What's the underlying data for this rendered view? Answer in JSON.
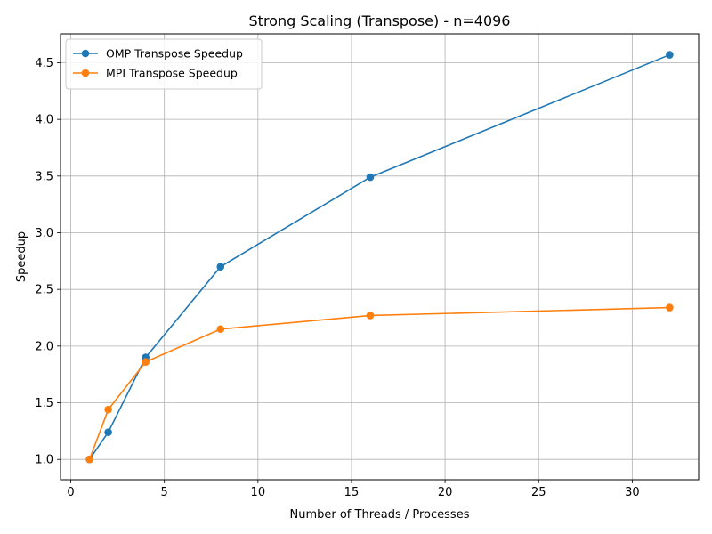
{
  "chart_data": {
    "type": "line",
    "title": "Strong Scaling (Transpose) - n=4096",
    "xlabel": "Number of Threads / Processes",
    "ylabel": "Speedup",
    "xlim": [
      -0.55,
      33.55
    ],
    "ylim": [
      0.821,
      4.755
    ],
    "xticks": [
      0,
      5,
      10,
      15,
      20,
      25,
      30
    ],
    "yticks": [
      1.0,
      1.5,
      2.0,
      2.5,
      3.0,
      3.5,
      4.0,
      4.5
    ],
    "grid": true,
    "legend_position": "upper-left",
    "series": [
      {
        "name": "OMP Transpose Speedup",
        "color": "#1f77b4",
        "x": [
          1,
          2,
          4,
          8,
          16,
          32
        ],
        "y": [
          1.0,
          1.24,
          1.9,
          2.7,
          3.49,
          4.57
        ]
      },
      {
        "name": "MPI Transpose Speedup",
        "color": "#ff7f0e",
        "x": [
          1,
          2,
          4,
          8,
          16,
          32
        ],
        "y": [
          1.0,
          1.44,
          1.86,
          2.15,
          2.27,
          2.34
        ]
      }
    ]
  }
}
